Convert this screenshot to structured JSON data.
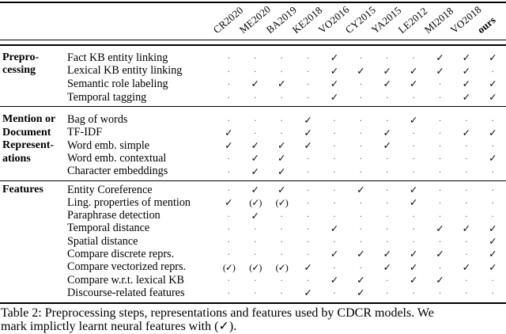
{
  "table": {
    "columns": [
      "CR2020",
      "ME2020",
      "BA2019",
      "KE2018",
      "VO2016",
      "CY2015",
      "YA2015",
      "LE2012",
      "MI2018",
      "VO2018",
      "ours"
    ],
    "marks_legend": {
      "check": "✓",
      "implicit_neural_check": "(✓)",
      "absent": "·"
    },
    "sections": [
      {
        "label_lines": [
          "Prepro-",
          "cessing"
        ],
        "rows": [
          {
            "label": "Fact KB entity linking",
            "marks": [
              "·",
              "·",
              "·",
              "·",
              "✓",
              "·",
              "·",
              "·",
              "✓",
              "✓",
              "✓"
            ]
          },
          {
            "label": "Lexical KB entity linking",
            "marks": [
              "·",
              "·",
              "·",
              "·",
              "✓",
              "✓",
              "✓",
              "✓",
              "✓",
              "✓",
              "·"
            ]
          },
          {
            "label": "Semantic role labeling",
            "marks": [
              "·",
              "✓",
              "✓",
              "·",
              "✓",
              "·",
              "✓",
              "✓",
              "·",
              "✓",
              "✓"
            ]
          },
          {
            "label": "Temporal tagging",
            "marks": [
              "·",
              "·",
              "·",
              "·",
              "✓",
              "·",
              "·",
              "·",
              "·",
              "✓",
              "✓"
            ]
          }
        ]
      },
      {
        "label_lines": [
          "Mention or",
          "Document",
          "Represent-",
          "ations"
        ],
        "rows": [
          {
            "label": "Bag of words",
            "marks": [
              "·",
              "·",
              "·",
              "✓",
              "·",
              "·",
              "·",
              "✓",
              "·",
              "·",
              "·"
            ]
          },
          {
            "label": "TF-IDF",
            "marks": [
              "✓",
              "·",
              "·",
              "✓",
              "·",
              "·",
              "✓",
              "·",
              "·",
              "✓",
              "✓"
            ]
          },
          {
            "label": "Word emb. simple",
            "marks": [
              "✓",
              "✓",
              "✓",
              "✓",
              "·",
              "·",
              "✓",
              "·",
              "·",
              "·",
              "·"
            ]
          },
          {
            "label": "Word emb. contextual",
            "marks": [
              "·",
              "✓",
              "✓",
              "·",
              "·",
              "·",
              "·",
              "·",
              "·",
              "·",
              "✓"
            ]
          },
          {
            "label": "Character embeddings",
            "marks": [
              "·",
              "✓",
              "✓",
              "·",
              "·",
              "·",
              "·",
              "·",
              "·",
              "·",
              "·"
            ]
          }
        ]
      },
      {
        "label_lines": [
          "Features"
        ],
        "rows": [
          {
            "label": "Entity Coreference",
            "marks": [
              "·",
              "✓",
              "✓",
              "·",
              "·",
              "✓",
              "·",
              "✓",
              "·",
              "·",
              "·"
            ]
          },
          {
            "label": "Ling. properties of mention",
            "marks": [
              "✓",
              "(✓)",
              "(✓)",
              "·",
              "·",
              "·",
              "·",
              "✓",
              "·",
              "·",
              "·"
            ]
          },
          {
            "label": "Paraphrase detection",
            "marks": [
              "·",
              "✓",
              "·",
              "·",
              "·",
              "·",
              "·",
              "·",
              "·",
              "·",
              "·"
            ]
          },
          {
            "label": "Temporal distance",
            "marks": [
              "·",
              "·",
              "·",
              "·",
              "✓",
              "·",
              "·",
              "·",
              "✓",
              "✓",
              "✓"
            ]
          },
          {
            "label": "Spatial distance",
            "marks": [
              "·",
              "·",
              "·",
              "·",
              "·",
              "·",
              "·",
              "·",
              "·",
              "·",
              "✓"
            ]
          },
          {
            "label": "Compare discrete reprs.",
            "marks": [
              "·",
              "·",
              "·",
              "·",
              "✓",
              "✓",
              "✓",
              "✓",
              "✓",
              "·",
              "✓"
            ]
          },
          {
            "label": "Compare vectorized reprs.",
            "marks": [
              "(✓)",
              "(✓)",
              "(✓)",
              "✓",
              "·",
              "·",
              "✓",
              "✓",
              "·",
              "✓",
              "✓"
            ]
          },
          {
            "label": "Compare w.r.t. lexical KB",
            "marks": [
              "·",
              "·",
              "·",
              "·",
              "✓",
              "✓",
              "·",
              "✓",
              "✓",
              "·",
              "·"
            ]
          },
          {
            "label": "Discourse-related features",
            "marks": [
              "·",
              "·",
              "·",
              "✓",
              "·",
              "✓",
              "·",
              "·",
              "·",
              "·",
              "·"
            ]
          }
        ]
      }
    ]
  },
  "caption": {
    "lines": [
      "Table 2: Preprocessing steps, representations and features used by CDCR models. We",
      "mark implictly learnt neural features with (✓)."
    ]
  }
}
